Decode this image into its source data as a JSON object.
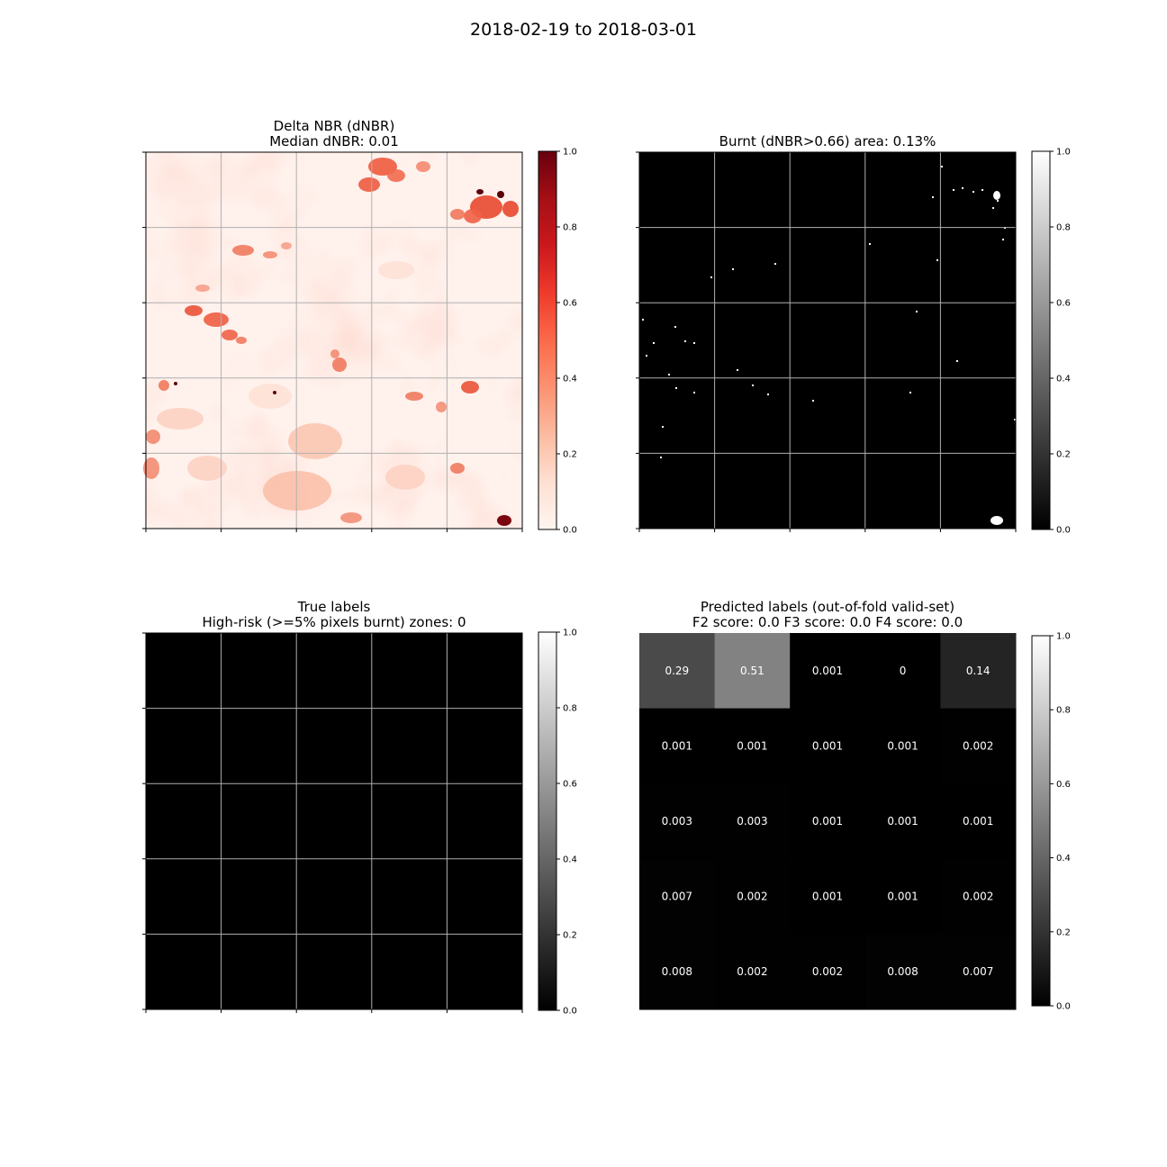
{
  "figure": {
    "suptitle": "2018-02-19 to 2018-03-01"
  },
  "chart_data": [
    {
      "type": "heatmap",
      "title": "Delta NBR (dNBR)",
      "subtitle": "Median dNBR: 0.01",
      "colormap": "Reds",
      "colorbar": {
        "range": [
          0,
          1
        ],
        "ticks": [
          "0.0",
          "0.2",
          "0.4",
          "0.6",
          "0.8",
          "1.0"
        ]
      },
      "grid": true,
      "grid_divisions": 5,
      "median_dnbr": 0.01
    },
    {
      "type": "heatmap",
      "title": "Burnt (dNBR>0.66) area: 0.13%",
      "colormap": "gray",
      "colorbar": {
        "range": [
          0,
          1
        ],
        "ticks": [
          "0.0",
          "0.2",
          "0.4",
          "0.6",
          "0.8",
          "1.0"
        ]
      },
      "grid": true,
      "grid_divisions": 5,
      "burnt_area_percent": 0.13
    },
    {
      "type": "heatmap",
      "title": "True labels",
      "subtitle": "High-risk (>=5% pixels burnt) zones: 0",
      "colormap": "gray",
      "colorbar": {
        "range": [
          0,
          1
        ],
        "ticks": [
          "0.0",
          "0.2",
          "0.4",
          "0.6",
          "0.8",
          "1.0"
        ]
      },
      "grid": true,
      "values": [
        [
          0,
          0,
          0,
          0,
          0
        ],
        [
          0,
          0,
          0,
          0,
          0
        ],
        [
          0,
          0,
          0,
          0,
          0
        ],
        [
          0,
          0,
          0,
          0,
          0
        ],
        [
          0,
          0,
          0,
          0,
          0
        ]
      ]
    },
    {
      "type": "heatmap",
      "title": "Predicted labels (out-of-fold valid-set)",
      "subtitle": "F2 score: 0.0 F3 score: 0.0 F4 score: 0.0",
      "colormap": "gray",
      "colorbar": {
        "range": [
          0,
          1
        ],
        "ticks": [
          "0.0",
          "0.2",
          "0.4",
          "0.6",
          "0.8",
          "1.0"
        ]
      },
      "grid": false,
      "values": [
        [
          0.29,
          0.51,
          0.001,
          0,
          0.14
        ],
        [
          0.001,
          0.001,
          0.001,
          0.001,
          0.002
        ],
        [
          0.003,
          0.003,
          0.001,
          0.001,
          0.001
        ],
        [
          0.007,
          0.002,
          0.001,
          0.001,
          0.002
        ],
        [
          0.008,
          0.002,
          0.002,
          0.008,
          0.007
        ]
      ],
      "value_labels": [
        [
          "0.29",
          "0.51",
          "0.001",
          "0",
          "0.14"
        ],
        [
          "0.001",
          "0.001",
          "0.001",
          "0.001",
          "0.002"
        ],
        [
          "0.003",
          "0.003",
          "0.001",
          "0.001",
          "0.001"
        ],
        [
          "0.007",
          "0.002",
          "0.001",
          "0.001",
          "0.002"
        ],
        [
          "0.008",
          "0.002",
          "0.002",
          "0.008",
          "0.007"
        ]
      ]
    }
  ]
}
